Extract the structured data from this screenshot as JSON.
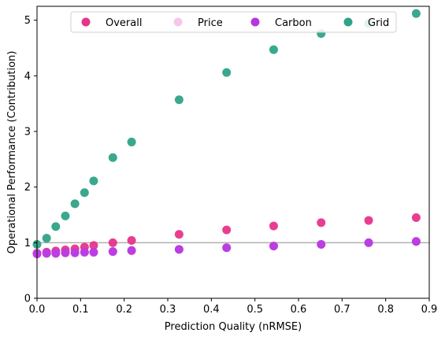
{
  "chart_data": {
    "type": "scatter",
    "xlabel": "Prediction Quality (nRMSE)",
    "ylabel": "Operational Performance (Contribution)",
    "xlim": [
      0,
      0.9
    ],
    "ylim": [
      0,
      5.25
    ],
    "xticks": [
      "0.0",
      "0.1",
      "0.2",
      "0.3",
      "0.4",
      "0.5",
      "0.6",
      "0.7",
      "0.8",
      "0.9"
    ],
    "yticks": [
      "0",
      "1",
      "2",
      "3",
      "4",
      "5"
    ],
    "grid": false,
    "legend_position": "top",
    "reference_line_y": 1.0,
    "series": [
      {
        "name": "Overall",
        "color": "#e8348a",
        "x": [
          0.0,
          0.022,
          0.043,
          0.065,
          0.087,
          0.109,
          0.13,
          0.174,
          0.217,
          0.326,
          0.435,
          0.543,
          0.652,
          0.761,
          0.87
        ],
        "y": [
          0.81,
          0.83,
          0.85,
          0.87,
          0.89,
          0.92,
          0.95,
          1.0,
          1.04,
          1.15,
          1.23,
          1.3,
          1.36,
          1.4,
          1.45
        ]
      },
      {
        "name": "Price",
        "color": "#f7c6ea",
        "x": [
          0.0,
          0.022,
          0.043,
          0.065,
          0.087,
          0.109,
          0.13,
          0.174,
          0.217,
          0.326,
          0.435,
          0.543,
          0.652,
          0.761,
          0.87
        ],
        "y": [
          0.79,
          0.8,
          0.8,
          0.81,
          0.81,
          0.82,
          0.82,
          0.84,
          0.85,
          0.88,
          0.91,
          0.94,
          0.97,
          1.0,
          1.03
        ]
      },
      {
        "name": "Carbon",
        "color": "#b637e0",
        "x": [
          0.0,
          0.022,
          0.043,
          0.065,
          0.087,
          0.109,
          0.13,
          0.174,
          0.217,
          0.326,
          0.435,
          0.543,
          0.652,
          0.761,
          0.87
        ],
        "y": [
          0.8,
          0.81,
          0.81,
          0.82,
          0.82,
          0.83,
          0.83,
          0.84,
          0.86,
          0.88,
          0.91,
          0.94,
          0.97,
          1.0,
          1.02
        ]
      },
      {
        "name": "Grid",
        "color": "#2fa387",
        "x": [
          0.0,
          0.022,
          0.043,
          0.065,
          0.087,
          0.109,
          0.13,
          0.174,
          0.217,
          0.326,
          0.435,
          0.543,
          0.652,
          0.761,
          0.87
        ],
        "y": [
          0.97,
          1.08,
          1.29,
          1.48,
          1.7,
          1.9,
          2.11,
          2.53,
          2.81,
          3.57,
          4.06,
          4.47,
          4.76,
          4.94,
          5.12
        ]
      }
    ]
  }
}
